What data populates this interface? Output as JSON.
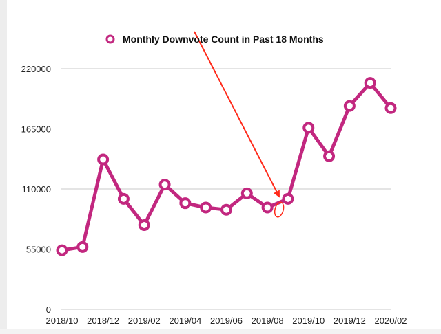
{
  "chart_data": {
    "type": "line",
    "legend": "Monthly Downvote Count in Past 18 Months",
    "legend_position": "top-center",
    "x": [
      "2018/10",
      "2018/11",
      "2018/12",
      "2019/01",
      "2019/02",
      "2019/03",
      "2019/04",
      "2019/05",
      "2019/06",
      "2019/07",
      "2019/08",
      "2019/09",
      "2019/10",
      "2019/11",
      "2019/12",
      "2020/01",
      "2020/02"
    ],
    "x_tick_labels": [
      "2018/10",
      "2018/12",
      "2019/02",
      "2019/04",
      "2019/06",
      "2019/08",
      "2019/10",
      "2019/12",
      "2020/02"
    ],
    "series": [
      {
        "name": "Monthly Downvote Count in Past 18 Months",
        "values": [
          54000,
          57000,
          137000,
          101000,
          77000,
          114000,
          97000,
          93000,
          91000,
          106000,
          93000,
          101000,
          166000,
          140000,
          186000,
          207000,
          184000
        ]
      }
    ],
    "y_ticks": [
      0,
      55000,
      110000,
      165000,
      220000
    ],
    "ylim": [
      0,
      220000
    ],
    "grid": true,
    "colors": {
      "line": "#c2277f",
      "marker_fill": "#ffffff",
      "grid": "#c8c8c8",
      "annotation": "#ff2a1a"
    },
    "annotation": {
      "type": "arrow-and-circle",
      "target_x": "2019/08"
    }
  }
}
